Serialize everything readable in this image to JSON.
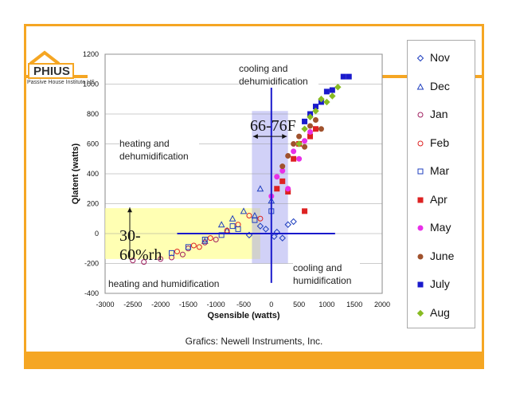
{
  "logo": {
    "name": "PHIUS",
    "subtitle": "Passive House Institute US"
  },
  "caption": "Grafics: Newell Instruments, Inc.",
  "annotations": {
    "cooling_dehum": "cooling and dehumidification",
    "heating_dehum": "heating and dehumidification",
    "heating_hum": "heating and humidification",
    "cooling_hum": "cooling and humidification",
    "temp_band": "66-76F",
    "rh_band": "30-60%rh"
  },
  "colors": {
    "border": "#f5a623",
    "yellow_band": "#ffff99",
    "blue_band": "#9999ee",
    "axis_lines": "#1a1acc"
  },
  "chart_data": {
    "type": "scatter",
    "xlabel": "Qsensible (watts)",
    "ylabel": "Qlatent (watts)",
    "xlim": [
      -3000,
      2000
    ],
    "ylim": [
      -400,
      1200
    ],
    "xticks": [
      -3000,
      -2500,
      -2000,
      -1500,
      -1000,
      -500,
      0,
      500,
      1000,
      1500,
      2000
    ],
    "yticks": [
      -400,
      -200,
      0,
      200,
      400,
      600,
      800,
      1000,
      1200
    ],
    "grid": true,
    "legend_position": "right",
    "series": [
      {
        "name": "Nov",
        "marker": "diamond-open",
        "color": "#1f3fbf",
        "points": [
          [
            -200,
            50
          ],
          [
            -100,
            30
          ],
          [
            50,
            -20
          ],
          [
            200,
            -30
          ],
          [
            300,
            60
          ],
          [
            -400,
            -10
          ],
          [
            400,
            80
          ],
          [
            100,
            10
          ]
        ]
      },
      {
        "name": "Dec",
        "marker": "triangle-open",
        "color": "#1f3fbf",
        "points": [
          [
            -1200,
            -50
          ],
          [
            -900,
            60
          ],
          [
            -700,
            100
          ],
          [
            -500,
            150
          ],
          [
            -300,
            120
          ],
          [
            -200,
            300
          ],
          [
            0,
            220
          ],
          [
            -800,
            20
          ]
        ]
      },
      {
        "name": "Jan",
        "marker": "circle-open",
        "color": "#a02060",
        "points": [
          [
            -2500,
            -180
          ],
          [
            -2300,
            -190
          ],
          [
            -2000,
            -170
          ],
          [
            -1800,
            -160
          ],
          [
            -1500,
            -100
          ],
          [
            -1200,
            -60
          ],
          [
            -1000,
            -40
          ],
          [
            -1600,
            -140
          ]
        ]
      },
      {
        "name": "Feb",
        "marker": "circle-open",
        "color": "#dd2222",
        "points": [
          [
            -1700,
            -120
          ],
          [
            -1400,
            -80
          ],
          [
            -1100,
            -30
          ],
          [
            -800,
            20
          ],
          [
            -600,
            60
          ],
          [
            -400,
            120
          ],
          [
            -200,
            100
          ],
          [
            -1300,
            -90
          ]
        ]
      },
      {
        "name": "Mar",
        "marker": "square-open",
        "color": "#1f3fbf",
        "points": [
          [
            -1800,
            -130
          ],
          [
            -1500,
            -90
          ],
          [
            -1200,
            -40
          ],
          [
            -900,
            -10
          ],
          [
            -600,
            30
          ],
          [
            -300,
            90
          ],
          [
            0,
            150
          ],
          [
            -700,
            50
          ]
        ]
      },
      {
        "name": "Apr",
        "marker": "square",
        "color": "#dd2222",
        "points": [
          [
            100,
            300
          ],
          [
            200,
            350
          ],
          [
            300,
            280
          ],
          [
            400,
            500
          ],
          [
            500,
            600
          ],
          [
            600,
            150
          ],
          [
            700,
            650
          ],
          [
            800,
            700
          ]
        ]
      },
      {
        "name": "May",
        "marker": "circle",
        "color": "#e830e8",
        "points": [
          [
            0,
            250
          ],
          [
            100,
            380
          ],
          [
            200,
            420
          ],
          [
            300,
            300
          ],
          [
            400,
            550
          ],
          [
            500,
            500
          ],
          [
            600,
            620
          ],
          [
            700,
            680
          ]
        ]
      },
      {
        "name": "June",
        "marker": "circle",
        "color": "#a0522d",
        "points": [
          [
            200,
            450
          ],
          [
            300,
            520
          ],
          [
            400,
            600
          ],
          [
            500,
            650
          ],
          [
            600,
            580
          ],
          [
            700,
            720
          ],
          [
            800,
            760
          ],
          [
            900,
            700
          ]
        ]
      },
      {
        "name": "July",
        "marker": "square",
        "color": "#1a1acc",
        "points": [
          [
            600,
            750
          ],
          [
            700,
            800
          ],
          [
            800,
            850
          ],
          [
            900,
            880
          ],
          [
            1000,
            950
          ],
          [
            1100,
            960
          ],
          [
            1300,
            1050
          ],
          [
            1400,
            1050
          ]
        ]
      },
      {
        "name": "Aug",
        "marker": "diamond",
        "color": "#88bb22",
        "points": [
          [
            500,
            600
          ],
          [
            600,
            700
          ],
          [
            700,
            780
          ],
          [
            800,
            820
          ],
          [
            900,
            900
          ],
          [
            1000,
            880
          ],
          [
            1100,
            920
          ],
          [
            1200,
            980
          ]
        ]
      }
    ]
  }
}
